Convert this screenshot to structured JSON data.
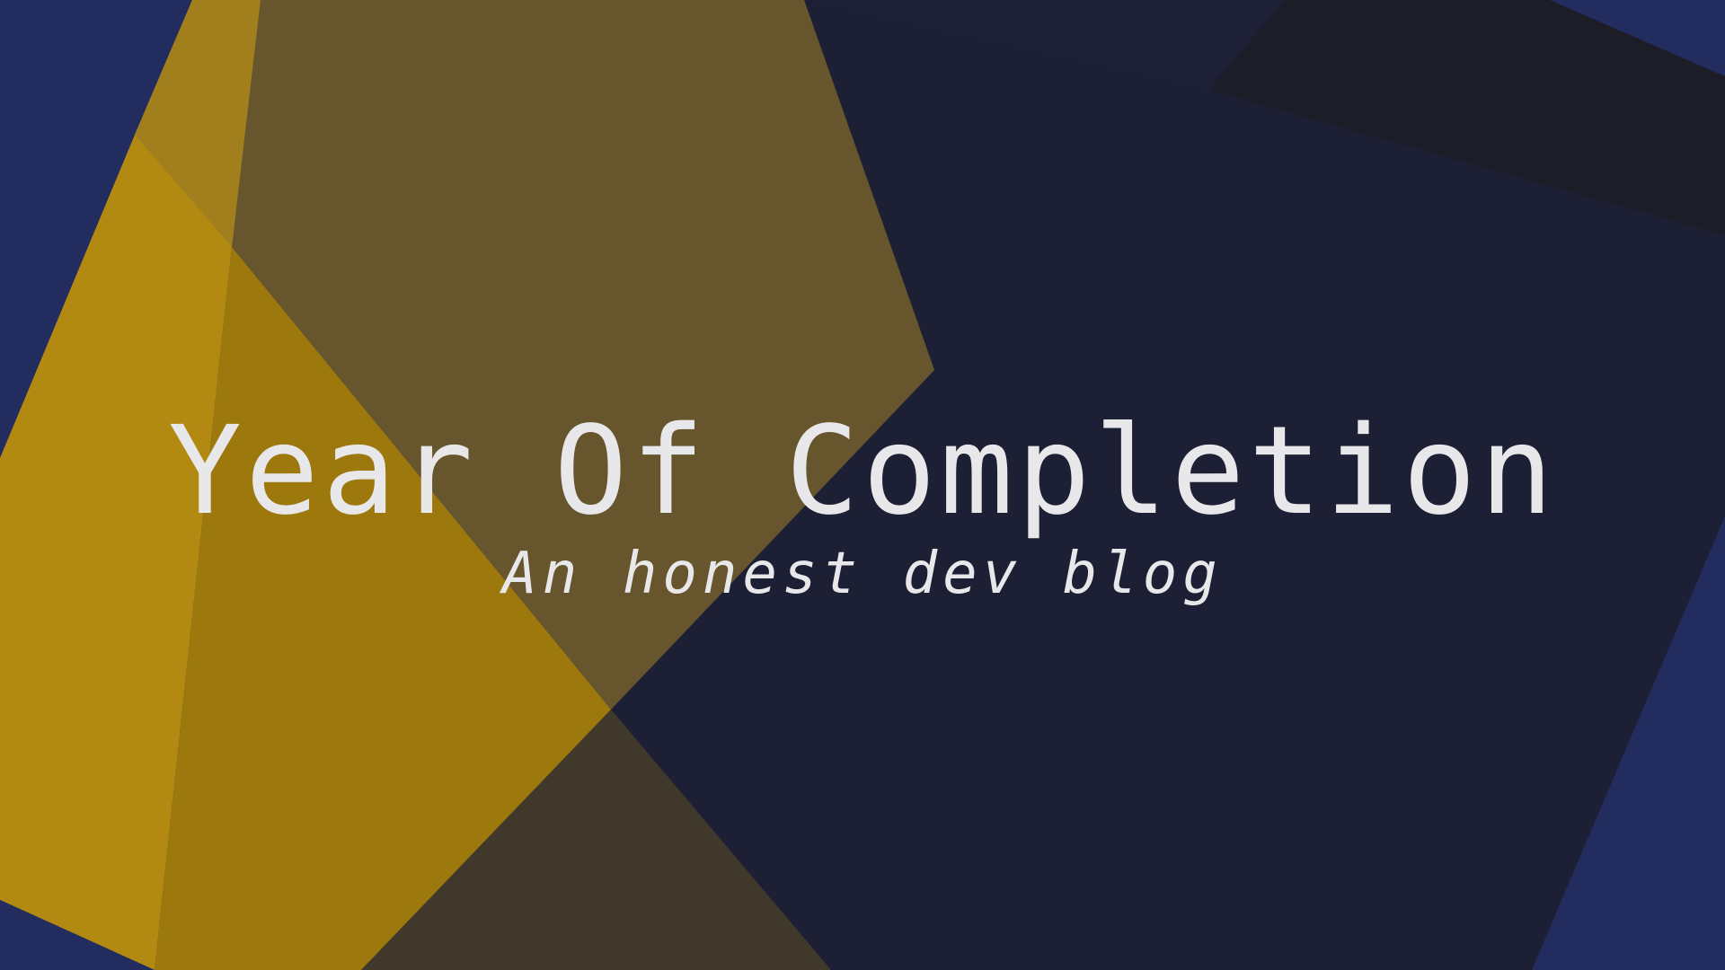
{
  "hero": {
    "title": "Year Of Completion",
    "subtitle": "An honest dev blog"
  },
  "colors": {
    "background_navy": "#232c5e",
    "dark_panel": "#1d2033",
    "gold": "#b28a12",
    "olive": "#67562d",
    "text": "#e8e8ea"
  }
}
